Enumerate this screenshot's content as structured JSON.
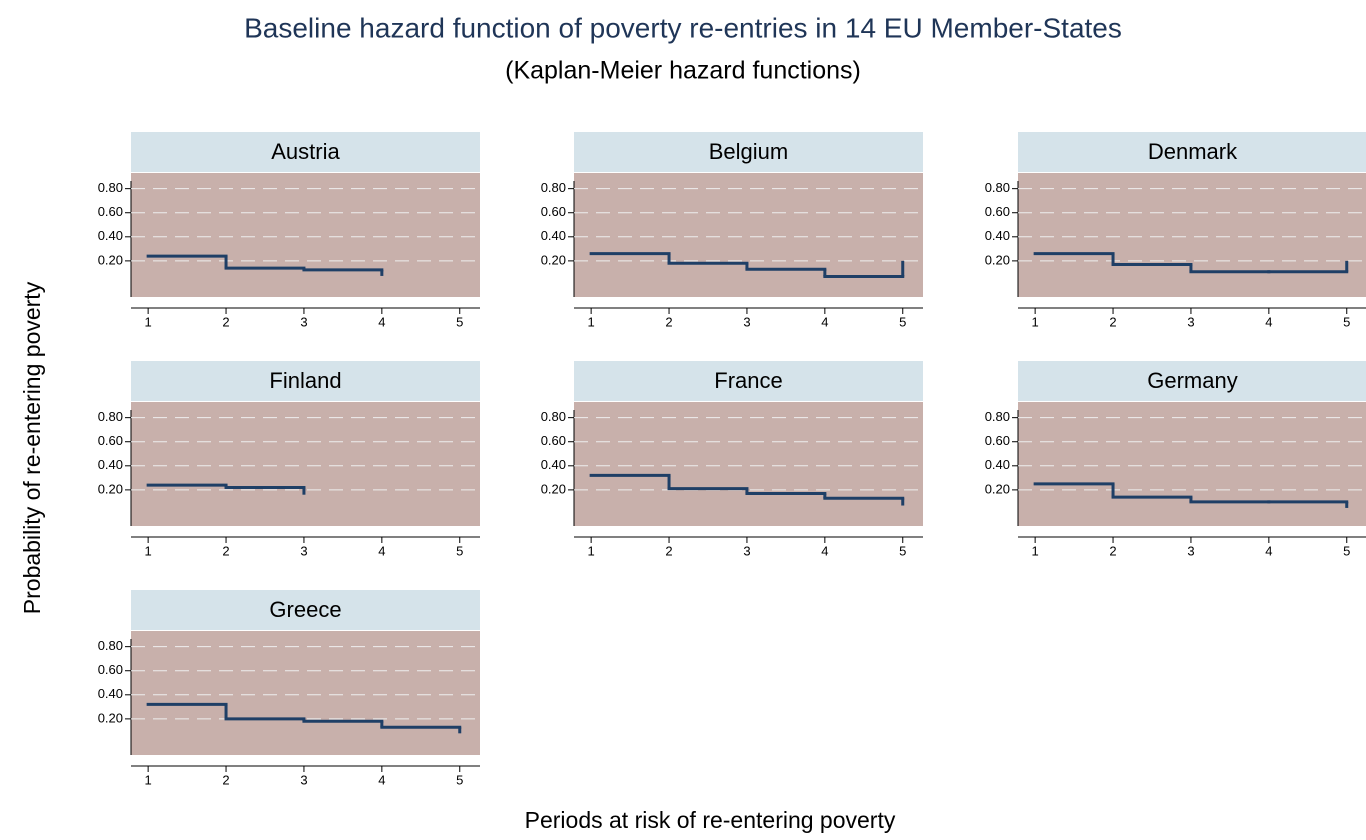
{
  "title": "Baseline hazard function of poverty re-entries in 14 EU Member-States",
  "subtitle": "(Kaplan-Meier hazard functions)",
  "x_label": "Periods at risk of re-entering poverty",
  "y_label": "Probability of re-entering poverty",
  "chart_data": [
    {
      "type": "line",
      "step": true,
      "title": "Austria",
      "color": "#1f3f66",
      "x": [
        1,
        2,
        3,
        4
      ],
      "values": [
        0.24,
        0.14,
        0.125,
        0.075
      ],
      "xlim": [
        0.78,
        5.26
      ],
      "ylim": [
        -0.1,
        0.93
      ],
      "xticks": [
        1,
        2,
        3,
        4,
        5
      ],
      "yticks": [
        {
          "value": 0.2,
          "label": "0.20"
        },
        {
          "value": 0.4,
          "label": "0.40"
        },
        {
          "value": 0.6,
          "label": "0.60"
        },
        {
          "value": 0.8,
          "label": "0.80"
        }
      ],
      "grid": true
    },
    {
      "type": "line",
      "step": true,
      "title": "Belgium",
      "color": "#1f3f66",
      "x": [
        1,
        2,
        3,
        4,
        5
      ],
      "values": [
        0.26,
        0.18,
        0.13,
        0.07,
        0.2
      ],
      "xlim": [
        0.78,
        5.26
      ],
      "ylim": [
        -0.1,
        0.93
      ],
      "xticks": [
        1,
        2,
        3,
        4,
        5
      ],
      "yticks": [
        {
          "value": 0.2,
          "label": "0.20"
        },
        {
          "value": 0.4,
          "label": "0.40"
        },
        {
          "value": 0.6,
          "label": "0.60"
        },
        {
          "value": 0.8,
          "label": "0.80"
        }
      ],
      "grid": true
    },
    {
      "type": "line",
      "step": true,
      "title": "Denmark",
      "color": "#1f3f66",
      "x": [
        1,
        2,
        3,
        4,
        5
      ],
      "values": [
        0.26,
        0.17,
        0.11,
        0.11,
        0.2
      ],
      "xlim": [
        0.78,
        5.26
      ],
      "ylim": [
        -0.1,
        0.93
      ],
      "xticks": [
        1,
        2,
        3,
        4,
        5
      ],
      "yticks": [
        {
          "value": 0.2,
          "label": "0.20"
        },
        {
          "value": 0.4,
          "label": "0.40"
        },
        {
          "value": 0.6,
          "label": "0.60"
        },
        {
          "value": 0.8,
          "label": "0.80"
        }
      ],
      "grid": true
    },
    {
      "type": "line",
      "step": true,
      "title": "Finland",
      "color": "#1f3f66",
      "x": [
        1,
        2,
        3
      ],
      "values": [
        0.24,
        0.22,
        0.16
      ],
      "xlim": [
        0.78,
        5.26
      ],
      "ylim": [
        -0.1,
        0.93
      ],
      "xticks": [
        1,
        2,
        3,
        4,
        5
      ],
      "yticks": [
        {
          "value": 0.2,
          "label": "0.20"
        },
        {
          "value": 0.4,
          "label": "0.40"
        },
        {
          "value": 0.6,
          "label": "0.60"
        },
        {
          "value": 0.8,
          "label": "0.80"
        }
      ],
      "grid": true
    },
    {
      "type": "line",
      "step": true,
      "title": "France",
      "color": "#1f3f66",
      "x": [
        1,
        2,
        3,
        4,
        5
      ],
      "values": [
        0.32,
        0.21,
        0.17,
        0.13,
        0.07
      ],
      "xlim": [
        0.78,
        5.26
      ],
      "ylim": [
        -0.1,
        0.93
      ],
      "xticks": [
        1,
        2,
        3,
        4,
        5
      ],
      "yticks": [
        {
          "value": 0.2,
          "label": "0.20"
        },
        {
          "value": 0.4,
          "label": "0.40"
        },
        {
          "value": 0.6,
          "label": "0.60"
        },
        {
          "value": 0.8,
          "label": "0.80"
        }
      ],
      "grid": true
    },
    {
      "type": "line",
      "step": true,
      "title": "Germany",
      "color": "#1f3f66",
      "x": [
        1,
        2,
        3,
        4,
        5
      ],
      "values": [
        0.25,
        0.14,
        0.1,
        0.1,
        0.05
      ],
      "xlim": [
        0.78,
        5.26
      ],
      "ylim": [
        -0.1,
        0.93
      ],
      "xticks": [
        1,
        2,
        3,
        4,
        5
      ],
      "yticks": [
        {
          "value": 0.2,
          "label": "0.20"
        },
        {
          "value": 0.4,
          "label": "0.40"
        },
        {
          "value": 0.6,
          "label": "0.60"
        },
        {
          "value": 0.8,
          "label": "0.80"
        }
      ],
      "grid": true
    },
    {
      "type": "line",
      "step": true,
      "title": "Greece",
      "color": "#1f3f66",
      "x": [
        1,
        2,
        3,
        4,
        5
      ],
      "values": [
        0.32,
        0.2,
        0.18,
        0.13,
        0.08
      ],
      "xlim": [
        0.78,
        5.26
      ],
      "ylim": [
        -0.1,
        0.93
      ],
      "xticks": [
        1,
        2,
        3,
        4,
        5
      ],
      "yticks": [
        {
          "value": 0.2,
          "label": "0.20"
        },
        {
          "value": 0.4,
          "label": "0.40"
        },
        {
          "value": 0.6,
          "label": "0.60"
        },
        {
          "value": 0.8,
          "label": "0.80"
        }
      ],
      "grid": true
    }
  ]
}
